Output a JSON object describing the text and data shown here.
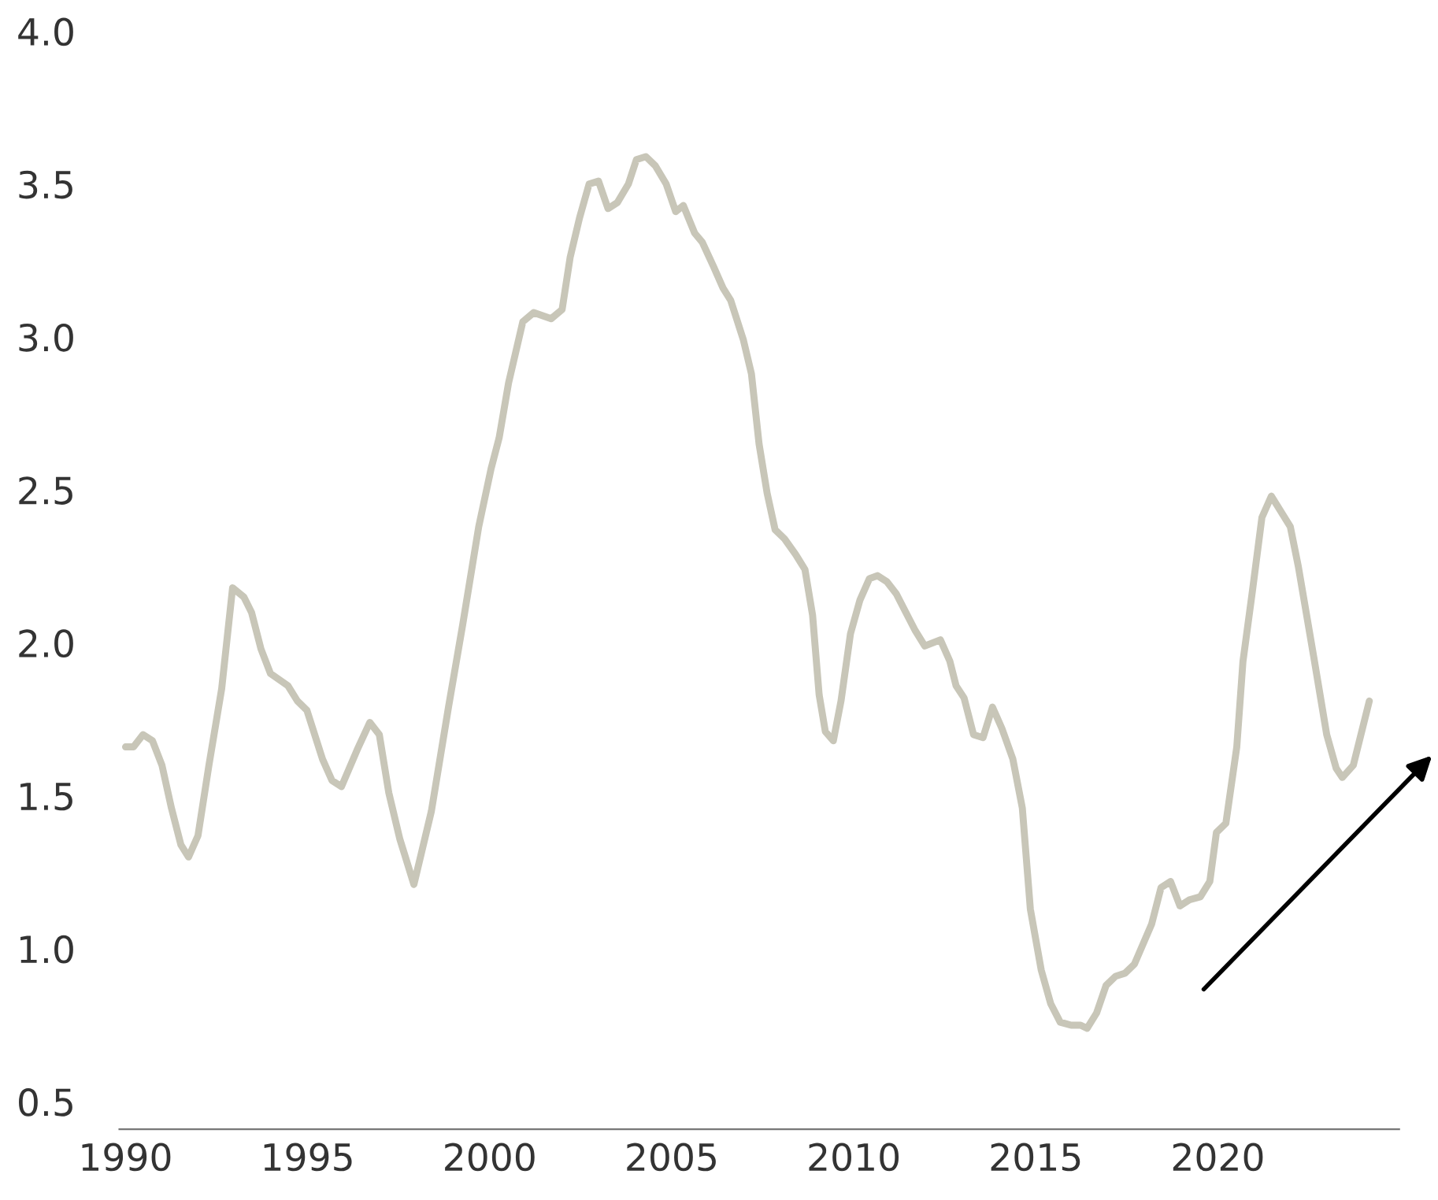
{
  "chart_data": {
    "type": "line",
    "x": [
      1990.0,
      1990.22,
      1990.48,
      1990.74,
      1991.0,
      1991.26,
      1991.52,
      1991.73,
      1991.99,
      1992.29,
      1992.64,
      1992.94,
      1993.25,
      1993.46,
      1993.72,
      1993.98,
      1994.46,
      1994.72,
      1994.98,
      1995.41,
      1995.67,
      1995.93,
      1996.36,
      1996.71,
      1996.97,
      1997.23,
      1997.53,
      1997.92,
      1998.4,
      1998.87,
      1999.26,
      1999.7,
      2000.04,
      2000.26,
      2000.52,
      2000.91,
      2001.21,
      2001.69,
      2001.99,
      2002.21,
      2002.47,
      2002.73,
      2002.99,
      2003.25,
      2003.51,
      2003.81,
      2004.03,
      2004.29,
      2004.55,
      2004.85,
      2005.11,
      2005.32,
      2005.63,
      2005.84,
      2006.15,
      2006.41,
      2006.62,
      2006.97,
      2007.19,
      2007.4,
      2007.62,
      2007.84,
      2008.1,
      2008.4,
      2008.66,
      2008.87,
      2009.05,
      2009.22,
      2009.44,
      2009.65,
      2009.91,
      2010.17,
      2010.43,
      2010.65,
      2010.91,
      2011.17,
      2011.69,
      2011.95,
      2012.38,
      2012.64,
      2012.81,
      2013.03,
      2013.29,
      2013.55,
      2013.81,
      2014.07,
      2014.37,
      2014.63,
      2014.85,
      2015.15,
      2015.41,
      2015.67,
      2015.97,
      2016.23,
      2016.41,
      2016.67,
      2016.93,
      2017.19,
      2017.45,
      2017.71,
      2018.18,
      2018.44,
      2018.7,
      2018.96,
      2019.22,
      2019.52,
      2019.78,
      2019.96,
      2020.22,
      2020.52,
      2020.69,
      2020.95,
      2021.21,
      2021.47,
      2021.99,
      2022.21,
      2022.64,
      2022.99,
      2023.25,
      2023.42,
      2023.72,
      2024.16
    ],
    "series": [
      {
        "color": "#c8c6b8",
        "values": [
          1.66,
          1.66,
          1.7,
          1.68,
          1.6,
          1.46,
          1.34,
          1.3,
          1.37,
          1.6,
          1.85,
          2.18,
          2.15,
          2.1,
          1.98,
          1.9,
          1.86,
          1.81,
          1.78,
          1.62,
          1.55,
          1.53,
          1.65,
          1.74,
          1.7,
          1.51,
          1.36,
          1.21,
          1.45,
          1.79,
          2.06,
          2.38,
          2.57,
          2.67,
          2.85,
          3.05,
          3.08,
          3.06,
          3.09,
          3.26,
          3.39,
          3.5,
          3.51,
          3.42,
          3.44,
          3.5,
          3.58,
          3.59,
          3.56,
          3.5,
          3.41,
          3.43,
          3.34,
          3.31,
          3.23,
          3.16,
          3.12,
          2.99,
          2.88,
          2.65,
          2.49,
          2.37,
          2.34,
          2.29,
          2.24,
          2.09,
          1.83,
          1.71,
          1.68,
          1.81,
          2.03,
          2.14,
          2.21,
          2.22,
          2.2,
          2.16,
          2.04,
          1.99,
          2.01,
          1.94,
          1.86,
          1.82,
          1.7,
          1.69,
          1.79,
          1.72,
          1.62,
          1.46,
          1.13,
          0.93,
          0.82,
          0.76,
          0.75,
          0.75,
          0.74,
          0.79,
          0.88,
          0.91,
          0.92,
          0.95,
          1.08,
          1.2,
          1.22,
          1.14,
          1.16,
          1.17,
          1.22,
          1.38,
          1.41,
          1.66,
          1.94,
          2.17,
          2.41,
          2.48,
          2.38,
          2.25,
          1.95,
          1.7,
          1.59,
          1.56,
          1.6,
          1.81
        ]
      }
    ],
    "xlim": [
      1989.83,
      2024.98
    ],
    "xticks": [
      1990,
      1995,
      2000,
      2005,
      2010,
      2015,
      2020
    ],
    "ylim": [
      0.41,
      4.0
    ],
    "yticks": [
      {
        "value": 0.5,
        "label": "0.5"
      },
      {
        "value": 1.0,
        "label": "1.0"
      },
      {
        "value": 1.5,
        "label": "1.5"
      },
      {
        "value": 2.0,
        "label": "2.0"
      },
      {
        "value": 2.5,
        "label": "2.5"
      },
      {
        "value": 3.0,
        "label": "3.0"
      },
      {
        "value": 3.5,
        "label": "3.5"
      },
      {
        "value": 4.0,
        "label": "4.0"
      }
    ],
    "marker": "none",
    "line_style": "solid"
  }
}
